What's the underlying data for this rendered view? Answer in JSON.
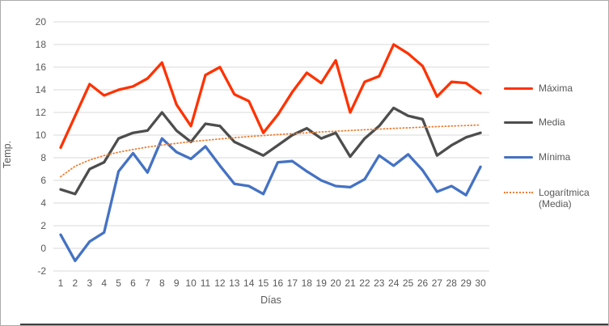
{
  "chart_data": {
    "type": "line",
    "title": "",
    "xlabel": "Días",
    "ylabel": "Temp.",
    "ylim": [
      -2,
      20
    ],
    "ytick_step": 2,
    "yticks": [
      20,
      18,
      16,
      14,
      12,
      10,
      8,
      6,
      4,
      2,
      0,
      -2
    ],
    "x": [
      1,
      2,
      3,
      4,
      5,
      6,
      7,
      8,
      9,
      10,
      11,
      12,
      13,
      14,
      15,
      16,
      17,
      18,
      19,
      20,
      21,
      22,
      23,
      24,
      25,
      26,
      27,
      28,
      29,
      30
    ],
    "grid": "horizontal",
    "legend_position": "right",
    "series": [
      {
        "name": "Máxima",
        "color": "#ff3200",
        "line_style": "solid",
        "width": 3.3,
        "values": [
          8.9,
          11.7,
          14.5,
          13.5,
          14.0,
          14.3,
          15.0,
          16.4,
          12.7,
          10.8,
          15.3,
          16.0,
          13.6,
          13.0,
          10.2,
          11.8,
          13.8,
          15.5,
          14.6,
          16.6,
          12.0,
          14.7,
          15.2,
          18.0,
          17.2,
          16.1,
          13.4,
          14.7,
          14.6,
          13.7
        ]
      },
      {
        "name": "Media",
        "color": "#4d4d4d",
        "line_style": "solid",
        "width": 3.3,
        "values": [
          5.2,
          4.8,
          7.0,
          7.6,
          9.7,
          10.2,
          10.4,
          12.0,
          10.4,
          9.4,
          11.0,
          10.8,
          9.4,
          8.8,
          8.2,
          9.1,
          10.0,
          10.6,
          9.7,
          10.2,
          8.1,
          9.7,
          10.8,
          12.4,
          11.7,
          11.4,
          8.2,
          9.1,
          9.8,
          10.2
        ]
      },
      {
        "name": "Mínima",
        "color": "#4472c4",
        "line_style": "solid",
        "width": 3.3,
        "values": [
          1.2,
          -1.1,
          0.6,
          1.4,
          6.8,
          8.4,
          6.7,
          9.7,
          8.5,
          7.9,
          9.0,
          7.3,
          5.7,
          5.5,
          4.8,
          7.6,
          7.7,
          6.8,
          6.0,
          5.5,
          5.4,
          6.1,
          8.2,
          7.3,
          8.3,
          6.9,
          5.0,
          5.5,
          4.7,
          7.2
        ]
      },
      {
        "name": "Logarítmica (Media)",
        "color": "#ed7d31",
        "line_style": "dotted",
        "width": 1.8,
        "values": [
          6.33,
          7.26,
          7.8,
          8.19,
          8.49,
          8.73,
          8.94,
          9.12,
          9.27,
          9.42,
          9.54,
          9.66,
          9.77,
          9.87,
          9.96,
          10.05,
          10.13,
          10.2,
          10.28,
          10.34,
          10.41,
          10.47,
          10.53,
          10.59,
          10.64,
          10.7,
          10.75,
          10.8,
          10.84,
          10.89
        ]
      }
    ],
    "colors": {
      "gridline": "#d9d9d9",
      "axis_text": "#595959",
      "background": "#ffffff",
      "frame_border": "#ababab",
      "window_bottom_edge": "#3f3f3f"
    }
  },
  "legend": {
    "items": [
      {
        "label": "Máxima"
      },
      {
        "label": "Media"
      },
      {
        "label": "Mínima"
      },
      {
        "label": "Logarítmica (Media)"
      }
    ]
  }
}
